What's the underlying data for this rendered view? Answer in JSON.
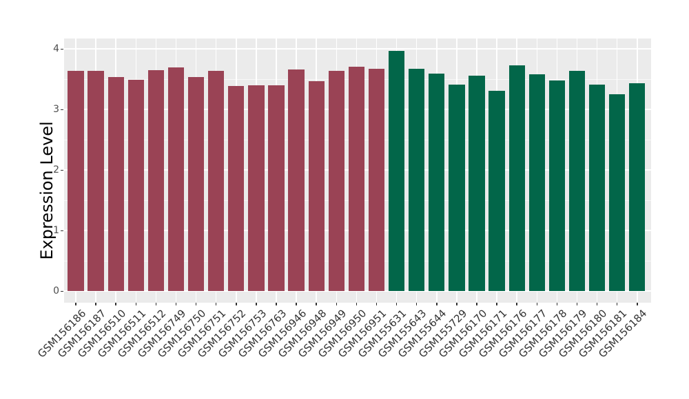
{
  "figure": {
    "background_color": "#FFFFFF",
    "panel_background_color": "#EBEBEB",
    "gridline_color": "#FFFFFF",
    "tick_color": "#333333",
    "axis_text_color": "#4D4D4D",
    "axis_title_color": "#000000"
  },
  "chart_data": {
    "type": "bar",
    "title": "",
    "xlabel": "",
    "ylabel": "Expression Level",
    "ylim": [
      0,
      4.17
    ],
    "yticks": [
      0,
      1,
      2,
      3,
      4
    ],
    "grid": true,
    "legend_position": "none",
    "categories": [
      "GSM156186",
      "GSM156187",
      "GSM156510",
      "GSM156511",
      "GSM156512",
      "GSM156749",
      "GSM156750",
      "GSM156751",
      "GSM156752",
      "GSM156753",
      "GSM156763",
      "GSM156946",
      "GSM156948",
      "GSM156949",
      "GSM156950",
      "GSM156951",
      "GSM155631",
      "GSM155643",
      "GSM155644",
      "GSM155729",
      "GSM156170",
      "GSM156171",
      "GSM156176",
      "GSM156177",
      "GSM156178",
      "GSM156179",
      "GSM156180",
      "GSM156181",
      "GSM156184"
    ],
    "values": [
      3.64,
      3.64,
      3.54,
      3.49,
      3.65,
      3.7,
      3.54,
      3.64,
      3.39,
      3.4,
      3.4,
      3.66,
      3.47,
      3.64,
      3.71,
      3.67,
      3.97,
      3.67,
      3.59,
      3.41,
      3.56,
      3.31,
      3.73,
      3.58,
      3.48,
      3.64,
      3.41,
      3.25,
      3.44
    ],
    "bar_groups": [
      "maroon",
      "maroon",
      "maroon",
      "maroon",
      "maroon",
      "maroon",
      "maroon",
      "maroon",
      "maroon",
      "maroon",
      "maroon",
      "maroon",
      "maroon",
      "maroon",
      "maroon",
      "maroon",
      "green",
      "green",
      "green",
      "green",
      "green",
      "green",
      "green",
      "green",
      "green",
      "green",
      "green",
      "green",
      "green"
    ],
    "group_colors": {
      "maroon": "#9A4355",
      "green": "#026649"
    }
  }
}
